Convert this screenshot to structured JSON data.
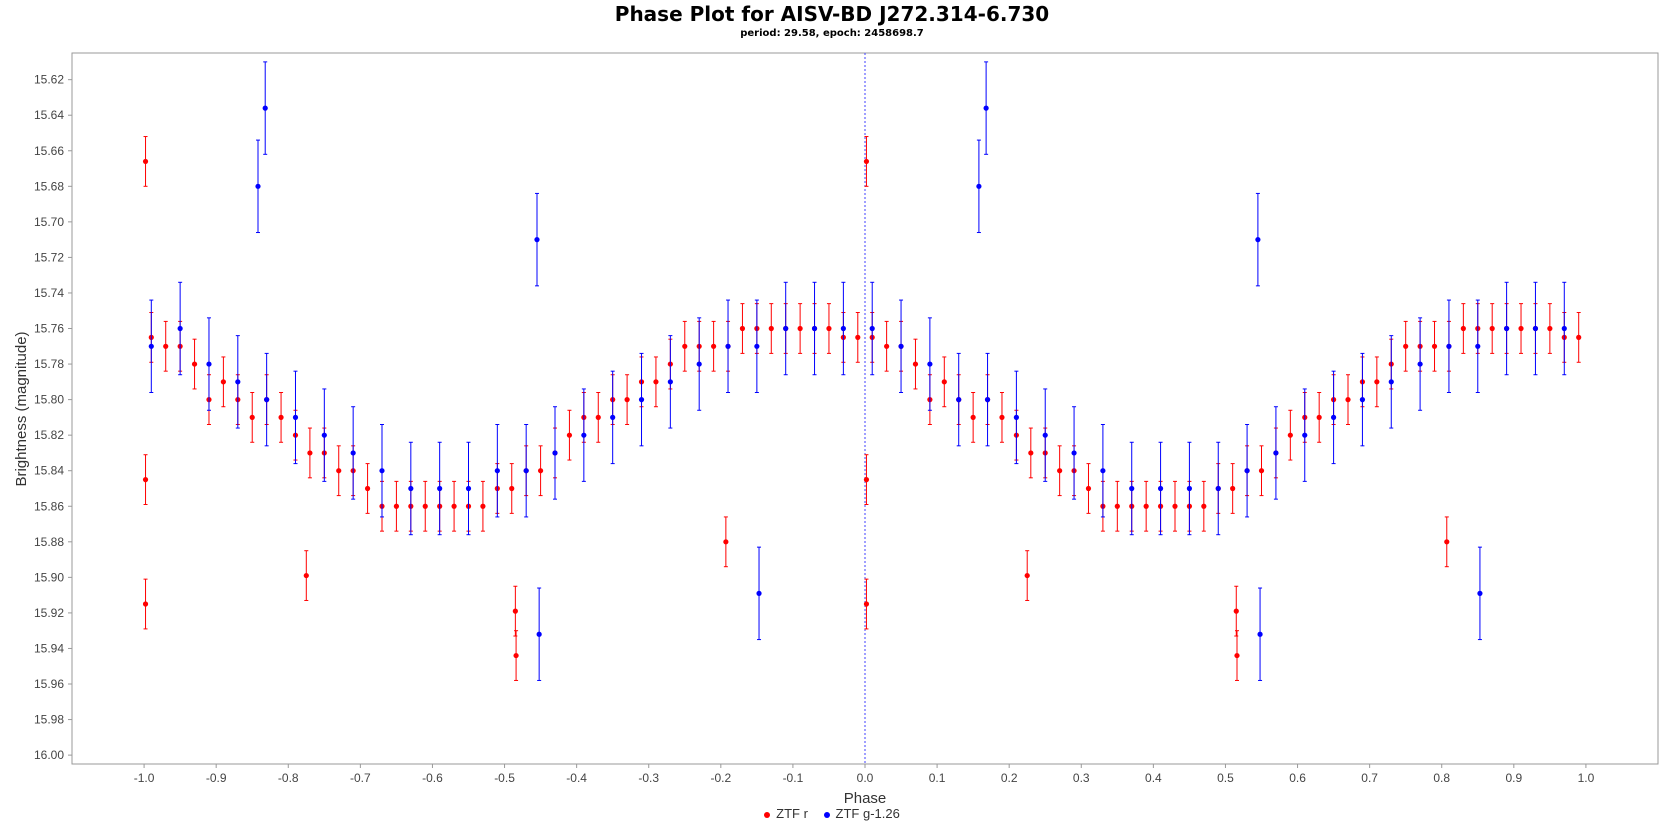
{
  "chart_data": {
    "type": "scatter",
    "title": "Phase Plot for AISV-BD J272.314-6.730",
    "subtitle": "period: 29.58, epoch: 2458698.7",
    "xlabel": "Phase",
    "ylabel": "Brightness (magnitude)",
    "xlim": [
      -1.1,
      1.1
    ],
    "ylim": [
      16.005,
      15.605
    ],
    "y_inverted": true,
    "x_ticks": [
      -1.0,
      -0.9,
      -0.8,
      -0.7,
      -0.6,
      -0.5,
      -0.4,
      -0.3,
      -0.2,
      -0.1,
      0.0,
      0.1,
      0.2,
      0.3,
      0.4,
      0.5,
      0.6,
      0.7,
      0.8,
      0.9,
      1.0
    ],
    "y_ticks": [
      15.62,
      15.64,
      15.66,
      15.68,
      15.7,
      15.72,
      15.74,
      15.76,
      15.78,
      15.8,
      15.82,
      15.84,
      15.86,
      15.88,
      15.9,
      15.92,
      15.94,
      15.96,
      15.98,
      16.0
    ],
    "reference_line_x": 0.0,
    "grid": false,
    "legend_position": "bottom-center",
    "series": [
      {
        "name": "ZTF r",
        "color": "#ff0000",
        "phase": [
          -0.99,
          -0.97,
          -0.95,
          -0.93,
          -0.91,
          -0.89,
          -0.87,
          -0.85,
          -0.83,
          -0.81,
          -0.79,
          -0.77,
          -0.75,
          -0.73,
          -0.71,
          -0.69,
          -0.67,
          -0.65,
          -0.63,
          -0.61,
          -0.59,
          -0.57,
          -0.55,
          -0.53,
          -0.51,
          -0.49,
          -0.47,
          -0.45,
          -0.43,
          -0.41,
          -0.39,
          -0.37,
          -0.35,
          -0.33,
          -0.31,
          -0.29,
          -0.27,
          -0.25,
          -0.23,
          -0.21,
          -0.19,
          -0.17,
          -0.15,
          -0.13,
          -0.11,
          -0.09,
          -0.07,
          -0.05,
          -0.03,
          -0.01,
          0.01,
          0.03,
          0.05,
          0.07,
          0.09,
          0.11,
          0.13,
          0.15,
          0.17,
          0.19,
          0.21,
          0.23,
          0.25,
          0.27,
          0.29,
          0.31,
          0.33,
          0.35,
          0.37,
          0.39,
          0.41,
          0.43,
          0.45,
          0.47,
          0.49,
          0.51,
          0.53,
          0.55,
          0.57,
          0.59,
          0.61,
          0.63,
          0.65,
          0.67,
          0.69,
          0.71,
          0.73,
          0.75,
          0.77,
          0.79,
          0.81,
          0.83,
          0.85,
          0.87,
          0.89,
          0.91,
          0.93,
          0.95,
          0.97,
          0.99,
          -0.998,
          -0.998,
          -0.998,
          -0.775,
          -0.485,
          -0.484,
          -0.193,
          0.002,
          0.002,
          0.002,
          0.225,
          0.515,
          0.516,
          0.807
        ],
        "mag": [
          15.765,
          15.77,
          15.77,
          15.78,
          15.8,
          15.79,
          15.8,
          15.81,
          15.8,
          15.81,
          15.82,
          15.83,
          15.83,
          15.84,
          15.84,
          15.85,
          15.86,
          15.86,
          15.86,
          15.86,
          15.86,
          15.86,
          15.86,
          15.86,
          15.85,
          15.85,
          15.84,
          15.84,
          15.83,
          15.82,
          15.81,
          15.81,
          15.8,
          15.8,
          15.79,
          15.79,
          15.78,
          15.77,
          15.77,
          15.77,
          15.77,
          15.76,
          15.76,
          15.76,
          15.76,
          15.76,
          15.76,
          15.76,
          15.765,
          15.765,
          15.765,
          15.77,
          15.77,
          15.78,
          15.8,
          15.79,
          15.8,
          15.81,
          15.8,
          15.81,
          15.82,
          15.83,
          15.83,
          15.84,
          15.84,
          15.85,
          15.86,
          15.86,
          15.86,
          15.86,
          15.86,
          15.86,
          15.86,
          15.86,
          15.85,
          15.85,
          15.84,
          15.84,
          15.83,
          15.82,
          15.81,
          15.81,
          15.8,
          15.8,
          15.79,
          15.79,
          15.78,
          15.77,
          15.77,
          15.77,
          15.77,
          15.76,
          15.76,
          15.76,
          15.76,
          15.76,
          15.76,
          15.76,
          15.765,
          15.765,
          15.666,
          15.915,
          15.845,
          15.899,
          15.919,
          15.944,
          15.88,
          15.666,
          15.915,
          15.845,
          15.899,
          15.919,
          15.944,
          15.88
        ],
        "err": [
          0.014,
          0.014,
          0.014,
          0.014,
          0.014,
          0.014,
          0.014,
          0.014,
          0.014,
          0.014,
          0.014,
          0.014,
          0.014,
          0.014,
          0.014,
          0.014,
          0.014,
          0.014,
          0.014,
          0.014,
          0.014,
          0.014,
          0.014,
          0.014,
          0.014,
          0.014,
          0.014,
          0.014,
          0.014,
          0.014,
          0.014,
          0.014,
          0.014,
          0.014,
          0.014,
          0.014,
          0.014,
          0.014,
          0.014,
          0.014,
          0.014,
          0.014,
          0.014,
          0.014,
          0.014,
          0.014,
          0.014,
          0.014,
          0.014,
          0.014,
          0.014,
          0.014,
          0.014,
          0.014,
          0.014,
          0.014,
          0.014,
          0.014,
          0.014,
          0.014,
          0.014,
          0.014,
          0.014,
          0.014,
          0.014,
          0.014,
          0.014,
          0.014,
          0.014,
          0.014,
          0.014,
          0.014,
          0.014,
          0.014,
          0.014,
          0.014,
          0.014,
          0.014,
          0.014,
          0.014,
          0.014,
          0.014,
          0.014,
          0.014,
          0.014,
          0.014,
          0.014,
          0.014,
          0.014,
          0.014,
          0.014,
          0.014,
          0.014,
          0.014,
          0.014,
          0.014,
          0.014,
          0.014,
          0.014,
          0.014,
          0.014,
          0.014,
          0.014,
          0.014,
          0.014,
          0.014,
          0.014,
          0.014,
          0.014,
          0.014,
          0.014,
          0.014,
          0.014,
          0.014
        ]
      },
      {
        "name": "ZTF g-1.26",
        "color": "#0000ff",
        "phase": [
          -0.99,
          -0.95,
          -0.91,
          -0.87,
          -0.83,
          -0.79,
          -0.75,
          -0.71,
          -0.67,
          -0.63,
          -0.59,
          -0.55,
          -0.51,
          -0.47,
          -0.43,
          -0.39,
          -0.35,
          -0.31,
          -0.27,
          -0.23,
          -0.19,
          -0.15,
          -0.11,
          -0.07,
          -0.03,
          0.01,
          0.05,
          0.09,
          0.13,
          0.17,
          0.21,
          0.25,
          0.29,
          0.33,
          0.37,
          0.41,
          0.45,
          0.49,
          0.53,
          0.57,
          0.61,
          0.65,
          0.69,
          0.73,
          0.77,
          0.81,
          0.85,
          0.89,
          0.93,
          0.97,
          -0.842,
          -0.832,
          -0.455,
          -0.452,
          -0.147,
          0.158,
          0.168,
          0.545,
          0.548,
          0.853
        ],
        "mag": [
          15.77,
          15.76,
          15.78,
          15.79,
          15.8,
          15.81,
          15.82,
          15.83,
          15.84,
          15.85,
          15.85,
          15.85,
          15.84,
          15.84,
          15.83,
          15.82,
          15.81,
          15.8,
          15.79,
          15.78,
          15.77,
          15.77,
          15.76,
          15.76,
          15.76,
          15.76,
          15.77,
          15.78,
          15.8,
          15.8,
          15.81,
          15.82,
          15.83,
          15.84,
          15.85,
          15.85,
          15.85,
          15.85,
          15.84,
          15.83,
          15.82,
          15.81,
          15.8,
          15.79,
          15.78,
          15.77,
          15.77,
          15.76,
          15.76,
          15.76,
          15.68,
          15.636,
          15.71,
          15.932,
          15.909,
          15.68,
          15.636,
          15.71,
          15.932,
          15.909
        ],
        "err": [
          0.026,
          0.026,
          0.026,
          0.026,
          0.026,
          0.026,
          0.026,
          0.026,
          0.026,
          0.026,
          0.026,
          0.026,
          0.026,
          0.026,
          0.026,
          0.026,
          0.026,
          0.026,
          0.026,
          0.026,
          0.026,
          0.026,
          0.026,
          0.026,
          0.026,
          0.026,
          0.026,
          0.026,
          0.026,
          0.026,
          0.026,
          0.026,
          0.026,
          0.026,
          0.026,
          0.026,
          0.026,
          0.026,
          0.026,
          0.026,
          0.026,
          0.026,
          0.026,
          0.026,
          0.026,
          0.026,
          0.026,
          0.026,
          0.026,
          0.026,
          0.026,
          0.026,
          0.026,
          0.026,
          0.026,
          0.026,
          0.026,
          0.026,
          0.026,
          0.026
        ]
      }
    ]
  },
  "legend": {
    "r_label": "ZTF r",
    "g_label": "ZTF g-1.26",
    "r_color": "#ff0000",
    "g_color": "#0000ff"
  }
}
